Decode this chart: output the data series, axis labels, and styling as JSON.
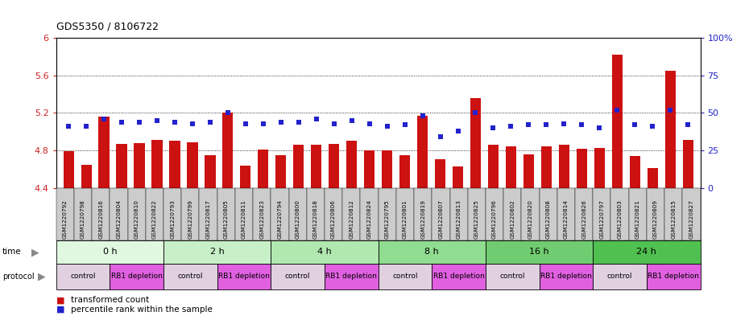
{
  "title": "GDS5350 / 8106722",
  "samples": [
    "GSM1220792",
    "GSM1220798",
    "GSM1220816",
    "GSM1220804",
    "GSM1220810",
    "GSM1220822",
    "GSM1220793",
    "GSM1220799",
    "GSM1220817",
    "GSM1220805",
    "GSM1220811",
    "GSM1220823",
    "GSM1220794",
    "GSM1220800",
    "GSM1220818",
    "GSM1220806",
    "GSM1220812",
    "GSM1220824",
    "GSM1220795",
    "GSM1220801",
    "GSM1220819",
    "GSM1220807",
    "GSM1220813",
    "GSM1220825",
    "GSM1220796",
    "GSM1220802",
    "GSM1220820",
    "GSM1220808",
    "GSM1220814",
    "GSM1220826",
    "GSM1220797",
    "GSM1220803",
    "GSM1220821",
    "GSM1220809",
    "GSM1220815",
    "GSM1220827"
  ],
  "red_values": [
    4.79,
    4.65,
    5.16,
    4.87,
    4.88,
    4.91,
    4.9,
    4.89,
    4.75,
    5.2,
    4.64,
    4.81,
    4.75,
    4.86,
    4.86,
    4.87,
    4.9,
    4.8,
    4.8,
    4.75,
    5.17,
    4.71,
    4.63,
    5.36,
    4.86,
    4.84,
    4.76,
    4.84,
    4.86,
    4.82,
    4.83,
    5.82,
    4.74,
    4.61,
    5.65,
    4.91
  ],
  "blue_values": [
    41,
    41,
    46,
    44,
    44,
    45,
    44,
    43,
    44,
    50,
    43,
    43,
    44,
    44,
    46,
    43,
    45,
    43,
    41,
    42,
    48,
    34,
    38,
    50,
    40,
    41,
    42,
    42,
    43,
    42,
    40,
    52,
    42,
    41,
    52,
    42
  ],
  "ylim_left": [
    4.4,
    6.0
  ],
  "ylim_right": [
    0,
    100
  ],
  "yticks_left": [
    4.4,
    4.8,
    5.2,
    5.6,
    6.0
  ],
  "yticks_right": [
    0,
    25,
    50,
    75,
    100
  ],
  "ytick_labels_left": [
    "4.4",
    "4.8",
    "5.2",
    "5.6",
    "6"
  ],
  "ytick_labels_right": [
    "0",
    "25",
    "50",
    "75",
    "100%"
  ],
  "time_groups": [
    {
      "label": "0 h",
      "start": 0,
      "end": 6,
      "color": "#e0f8e0"
    },
    {
      "label": "2 h",
      "start": 6,
      "end": 12,
      "color": "#c8f0c8"
    },
    {
      "label": "4 h",
      "start": 12,
      "end": 18,
      "color": "#b0e8b0"
    },
    {
      "label": "8 h",
      "start": 18,
      "end": 24,
      "color": "#90dc90"
    },
    {
      "label": "16 h",
      "start": 24,
      "end": 30,
      "color": "#70cc70"
    },
    {
      "label": "24 h",
      "start": 30,
      "end": 36,
      "color": "#50c050"
    }
  ],
  "protocol_groups": [
    {
      "label": "control",
      "start": 0,
      "end": 3,
      "color": "#e0d0e0"
    },
    {
      "label": "RB1 depletion",
      "start": 3,
      "end": 6,
      "color": "#e060e0"
    },
    {
      "label": "control",
      "start": 6,
      "end": 9,
      "color": "#e0d0e0"
    },
    {
      "label": "RB1 depletion",
      "start": 9,
      "end": 12,
      "color": "#e060e0"
    },
    {
      "label": "control",
      "start": 12,
      "end": 15,
      "color": "#e0d0e0"
    },
    {
      "label": "RB1 depletion",
      "start": 15,
      "end": 18,
      "color": "#e060e0"
    },
    {
      "label": "control",
      "start": 18,
      "end": 21,
      "color": "#e0d0e0"
    },
    {
      "label": "RB1 depletion",
      "start": 21,
      "end": 24,
      "color": "#e060e0"
    },
    {
      "label": "control",
      "start": 24,
      "end": 27,
      "color": "#e0d0e0"
    },
    {
      "label": "RB1 depletion",
      "start": 27,
      "end": 30,
      "color": "#e060e0"
    },
    {
      "label": "control",
      "start": 30,
      "end": 33,
      "color": "#e0d0e0"
    },
    {
      "label": "RB1 depletion",
      "start": 33,
      "end": 36,
      "color": "#e060e0"
    }
  ],
  "bar_color": "#cc1111",
  "dot_color": "#2222cc",
  "background_color": "#ffffff",
  "sample_label_bg": "#cccccc",
  "title_fontsize": 9
}
